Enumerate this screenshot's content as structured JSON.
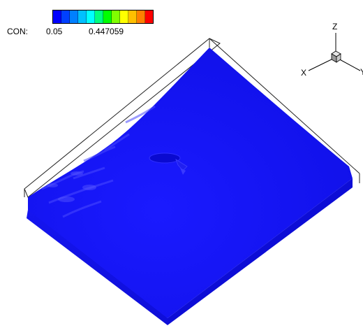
{
  "legend": {
    "variable": "CON:",
    "min_label": "0.05",
    "max_label": "0.447059",
    "colors": [
      "#0000ff",
      "#0040ff",
      "#0080ff",
      "#00c0ff",
      "#00ffff",
      "#00ff80",
      "#00ff00",
      "#80ff00",
      "#ffff00",
      "#ffc000",
      "#ff8000",
      "#ff0000"
    ]
  },
  "axes": {
    "x": "X",
    "y": "Y",
    "z": "Z"
  },
  "surface_color": "#1414f5"
}
